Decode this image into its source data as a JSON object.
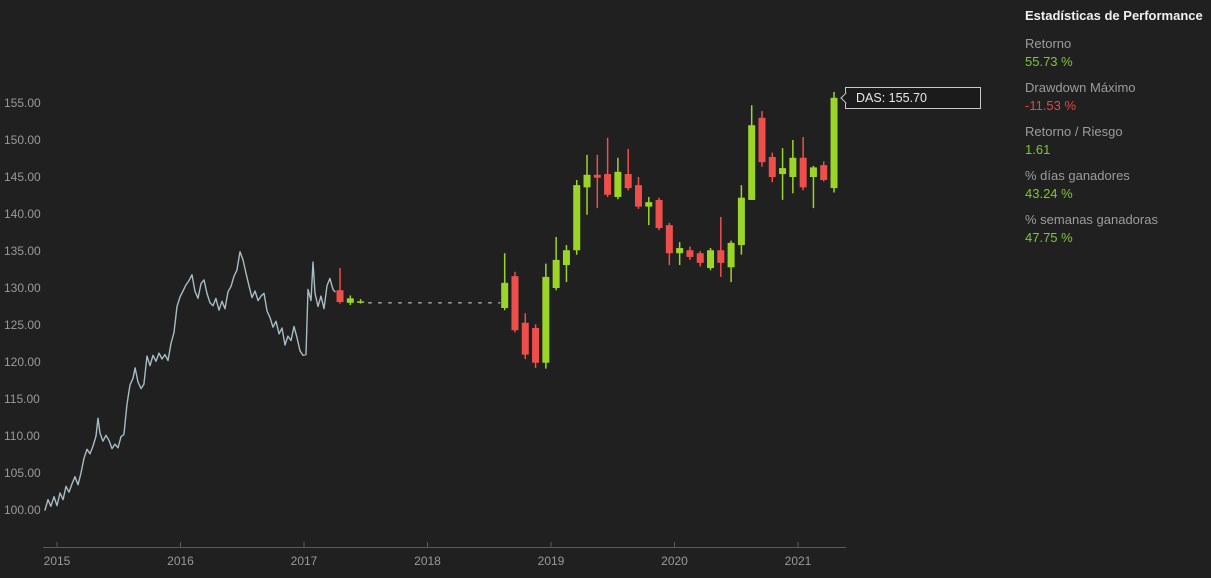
{
  "stats_panel": {
    "title": "Estadísticas de Performance",
    "items": [
      {
        "label": "Retorno",
        "value": "55.73 %",
        "color": "positive"
      },
      {
        "label": "Drawdown Máximo",
        "value": "-11.53 %",
        "color": "negative"
      },
      {
        "label": "Retorno / Riesgo",
        "value": "1.61",
        "color": "positive"
      },
      {
        "label": "% días ganadores",
        "value": "43.24 %",
        "color": "positive"
      },
      {
        "label": "% semanas ganadoras",
        "value": "47.75 %",
        "color": "positive"
      }
    ]
  },
  "tooltip": {
    "label": "DAS: 155.70",
    "symbol": "DAS",
    "price": "155.70"
  },
  "colors": {
    "positive": "#7dc82d",
    "negative": "#e14646",
    "bull": "#9bd528",
    "bear": "#ef4f4b",
    "line": "#a6bdc5",
    "dashed": "#9a9a9a",
    "axis": "#5a5a5a",
    "tick_text": "#9a9a9a",
    "background": "#202020"
  },
  "chart_data": {
    "type": "candlestick",
    "title": "",
    "legend": "none",
    "grid": false,
    "y_axis": {
      "min": 100,
      "max": 155,
      "step": 5,
      "label_format": "2dp",
      "tick_labels": [
        "100.00",
        "105.00",
        "110.00",
        "115.00",
        "120.00",
        "125.00",
        "130.00",
        "135.00",
        "140.00",
        "145.00",
        "150.00",
        "155.00"
      ]
    },
    "x_axis": {
      "years": [
        2015,
        2016,
        2017,
        2018,
        2019,
        2020,
        2021
      ]
    },
    "line_series": {
      "name": "weekly-close-line",
      "points": [
        [
          2014.903,
          100.0
        ],
        [
          2014.927,
          101.4
        ],
        [
          2014.951,
          100.5
        ],
        [
          2014.976,
          101.8
        ],
        [
          2015.0,
          100.6
        ],
        [
          2015.024,
          102.3
        ],
        [
          2015.049,
          101.4
        ],
        [
          2015.073,
          103.2
        ],
        [
          2015.097,
          102.4
        ],
        [
          2015.121,
          103.5
        ],
        [
          2015.146,
          104.5
        ],
        [
          2015.17,
          103.4
        ],
        [
          2015.194,
          105.0
        ],
        [
          2015.219,
          107.0
        ],
        [
          2015.243,
          108.2
        ],
        [
          2015.267,
          107.6
        ],
        [
          2015.291,
          108.6
        ],
        [
          2015.316,
          110.0
        ],
        [
          2015.332,
          112.4
        ],
        [
          2015.348,
          110.4
        ],
        [
          2015.372,
          109.3
        ],
        [
          2015.397,
          110.1
        ],
        [
          2015.421,
          109.4
        ],
        [
          2015.445,
          108.3
        ],
        [
          2015.47,
          108.9
        ],
        [
          2015.494,
          108.4
        ],
        [
          2015.518,
          109.9
        ],
        [
          2015.542,
          110.2
        ],
        [
          2015.567,
          114.3
        ],
        [
          2015.591,
          116.9
        ],
        [
          2015.615,
          117.8
        ],
        [
          2015.632,
          119.2
        ],
        [
          2015.656,
          117.3
        ],
        [
          2015.68,
          116.4
        ],
        [
          2015.704,
          117.0
        ],
        [
          2015.729,
          120.8
        ],
        [
          2015.753,
          119.5
        ],
        [
          2015.777,
          120.9
        ],
        [
          2015.802,
          120.1
        ],
        [
          2015.826,
          121.2
        ],
        [
          2015.85,
          120.4
        ],
        [
          2015.874,
          121.0
        ],
        [
          2015.899,
          120.2
        ],
        [
          2015.923,
          122.5
        ],
        [
          2015.947,
          124.0
        ],
        [
          2015.972,
          127.5
        ],
        [
          2015.996,
          128.8
        ],
        [
          2016.02,
          129.6
        ],
        [
          2016.044,
          130.4
        ],
        [
          2016.069,
          131.0
        ],
        [
          2016.093,
          131.8
        ],
        [
          2016.117,
          129.6
        ],
        [
          2016.142,
          128.6
        ],
        [
          2016.166,
          130.6
        ],
        [
          2016.19,
          131.1
        ],
        [
          2016.215,
          129.2
        ],
        [
          2016.239,
          128.0
        ],
        [
          2016.263,
          127.6
        ],
        [
          2016.287,
          128.6
        ],
        [
          2016.312,
          127.0
        ],
        [
          2016.336,
          128.2
        ],
        [
          2016.36,
          127.2
        ],
        [
          2016.385,
          129.5
        ],
        [
          2016.409,
          130.2
        ],
        [
          2016.433,
          131.6
        ],
        [
          2016.457,
          132.4
        ],
        [
          2016.482,
          134.9
        ],
        [
          2016.506,
          133.8
        ],
        [
          2016.53,
          132.0
        ],
        [
          2016.555,
          130.3
        ],
        [
          2016.579,
          128.7
        ],
        [
          2016.603,
          129.6
        ],
        [
          2016.628,
          128.3
        ],
        [
          2016.652,
          128.9
        ],
        [
          2016.676,
          129.3
        ],
        [
          2016.7,
          126.9
        ],
        [
          2016.725,
          126.0
        ],
        [
          2016.749,
          124.7
        ],
        [
          2016.773,
          125.5
        ],
        [
          2016.798,
          123.8
        ],
        [
          2016.822,
          124.6
        ],
        [
          2016.846,
          122.3
        ],
        [
          2016.87,
          123.5
        ],
        [
          2016.895,
          122.9
        ],
        [
          2016.919,
          124.8
        ],
        [
          2016.943,
          123.3
        ],
        [
          2016.968,
          121.5
        ],
        [
          2016.992,
          120.9
        ],
        [
          2017.016,
          121.0
        ],
        [
          2017.032,
          129.8
        ],
        [
          2017.057,
          128.3
        ],
        [
          2017.073,
          133.5
        ],
        [
          2017.089,
          129.3
        ],
        [
          2017.113,
          127.5
        ],
        [
          2017.138,
          128.9
        ],
        [
          2017.162,
          127.2
        ],
        [
          2017.186,
          130.3
        ],
        [
          2017.21,
          131.3
        ],
        [
          2017.235,
          129.8
        ],
        [
          2017.251,
          129.5
        ]
      ]
    },
    "gap_dashed_line": {
      "from": 2017.52,
      "to": 2018.59,
      "value": 128.0
    },
    "candles": [
      {
        "d": "2017-04",
        "o": 129.7,
        "h": 132.7,
        "l": 127.9,
        "c": 128.1
      },
      {
        "d": "2017-05",
        "o": 128.0,
        "h": 129.0,
        "l": 127.7,
        "c": 128.6
      },
      {
        "d": "2017-06",
        "o": 128.2,
        "h": 128.5,
        "l": 127.9,
        "c": 128.2
      },
      {
        "d": "2018-08",
        "o": 127.3,
        "h": 134.7,
        "l": 127.0,
        "c": 130.7
      },
      {
        "d": "2018-09",
        "o": 131.6,
        "h": 132.2,
        "l": 124.0,
        "c": 124.3
      },
      {
        "d": "2018-10",
        "o": 125.3,
        "h": 126.6,
        "l": 120.4,
        "c": 121.0
      },
      {
        "d": "2018-11",
        "o": 124.6,
        "h": 125.1,
        "l": 119.2,
        "c": 119.9
      },
      {
        "d": "2018-12",
        "o": 119.9,
        "h": 133.3,
        "l": 119.1,
        "c": 131.5
      },
      {
        "d": "2019-01",
        "o": 130.0,
        "h": 136.9,
        "l": 129.7,
        "c": 133.8
      },
      {
        "d": "2019-02",
        "o": 133.1,
        "h": 135.8,
        "l": 130.8,
        "c": 135.1
      },
      {
        "d": "2019-03",
        "o": 135.1,
        "h": 144.6,
        "l": 134.5,
        "c": 143.9
      },
      {
        "d": "2019-04",
        "o": 143.6,
        "h": 148.0,
        "l": 139.9,
        "c": 145.3
      },
      {
        "d": "2019-05",
        "o": 145.3,
        "h": 148.0,
        "l": 140.8,
        "c": 144.9
      },
      {
        "d": "2019-06",
        "o": 145.4,
        "h": 150.3,
        "l": 142.3,
        "c": 142.6
      },
      {
        "d": "2019-07",
        "o": 142.3,
        "h": 147.6,
        "l": 142.0,
        "c": 145.7
      },
      {
        "d": "2019-08",
        "o": 145.4,
        "h": 148.8,
        "l": 143.2,
        "c": 143.5
      },
      {
        "d": "2019-09",
        "o": 143.9,
        "h": 145.0,
        "l": 140.7,
        "c": 141.0
      },
      {
        "d": "2019-10",
        "o": 141.0,
        "h": 142.3,
        "l": 138.5,
        "c": 141.6
      },
      {
        "d": "2019-11",
        "o": 141.9,
        "h": 142.2,
        "l": 137.8,
        "c": 138.1
      },
      {
        "d": "2019-12",
        "o": 138.5,
        "h": 138.8,
        "l": 133.1,
        "c": 134.7
      },
      {
        "d": "2020-01",
        "o": 134.7,
        "h": 136.2,
        "l": 133.1,
        "c": 135.4
      },
      {
        "d": "2020-02",
        "o": 135.1,
        "h": 135.6,
        "l": 133.8,
        "c": 134.2
      },
      {
        "d": "2020-03",
        "o": 134.7,
        "h": 135.0,
        "l": 132.9,
        "c": 133.4
      },
      {
        "d": "2020-04",
        "o": 132.7,
        "h": 135.4,
        "l": 132.4,
        "c": 135.1
      },
      {
        "d": "2020-05",
        "o": 135.1,
        "h": 139.6,
        "l": 131.5,
        "c": 133.4
      },
      {
        "d": "2020-06",
        "o": 132.8,
        "h": 136.4,
        "l": 130.8,
        "c": 136.1
      },
      {
        "d": "2020-07",
        "o": 135.8,
        "h": 143.9,
        "l": 134.5,
        "c": 142.2
      },
      {
        "d": "2020-08",
        "o": 141.9,
        "h": 154.7,
        "l": 141.9,
        "c": 152.0
      },
      {
        "d": "2020-09",
        "o": 153.0,
        "h": 153.9,
        "l": 146.4,
        "c": 147.0
      },
      {
        "d": "2020-10",
        "o": 147.7,
        "h": 148.3,
        "l": 144.3,
        "c": 145.0
      },
      {
        "d": "2020-11",
        "o": 145.4,
        "h": 148.9,
        "l": 141.9,
        "c": 146.2
      },
      {
        "d": "2020-12",
        "o": 145.0,
        "h": 150.0,
        "l": 142.8,
        "c": 147.6
      },
      {
        "d": "2021-01",
        "o": 147.6,
        "h": 150.4,
        "l": 143.2,
        "c": 143.6
      },
      {
        "d": "2021-02",
        "o": 145.0,
        "h": 146.5,
        "l": 140.8,
        "c": 146.3
      },
      {
        "d": "2021-03",
        "o": 146.6,
        "h": 147.1,
        "l": 144.4,
        "c": 144.6
      },
      {
        "d": "2021-04",
        "o": 143.5,
        "h": 156.5,
        "l": 142.9,
        "c": 155.7
      }
    ]
  }
}
